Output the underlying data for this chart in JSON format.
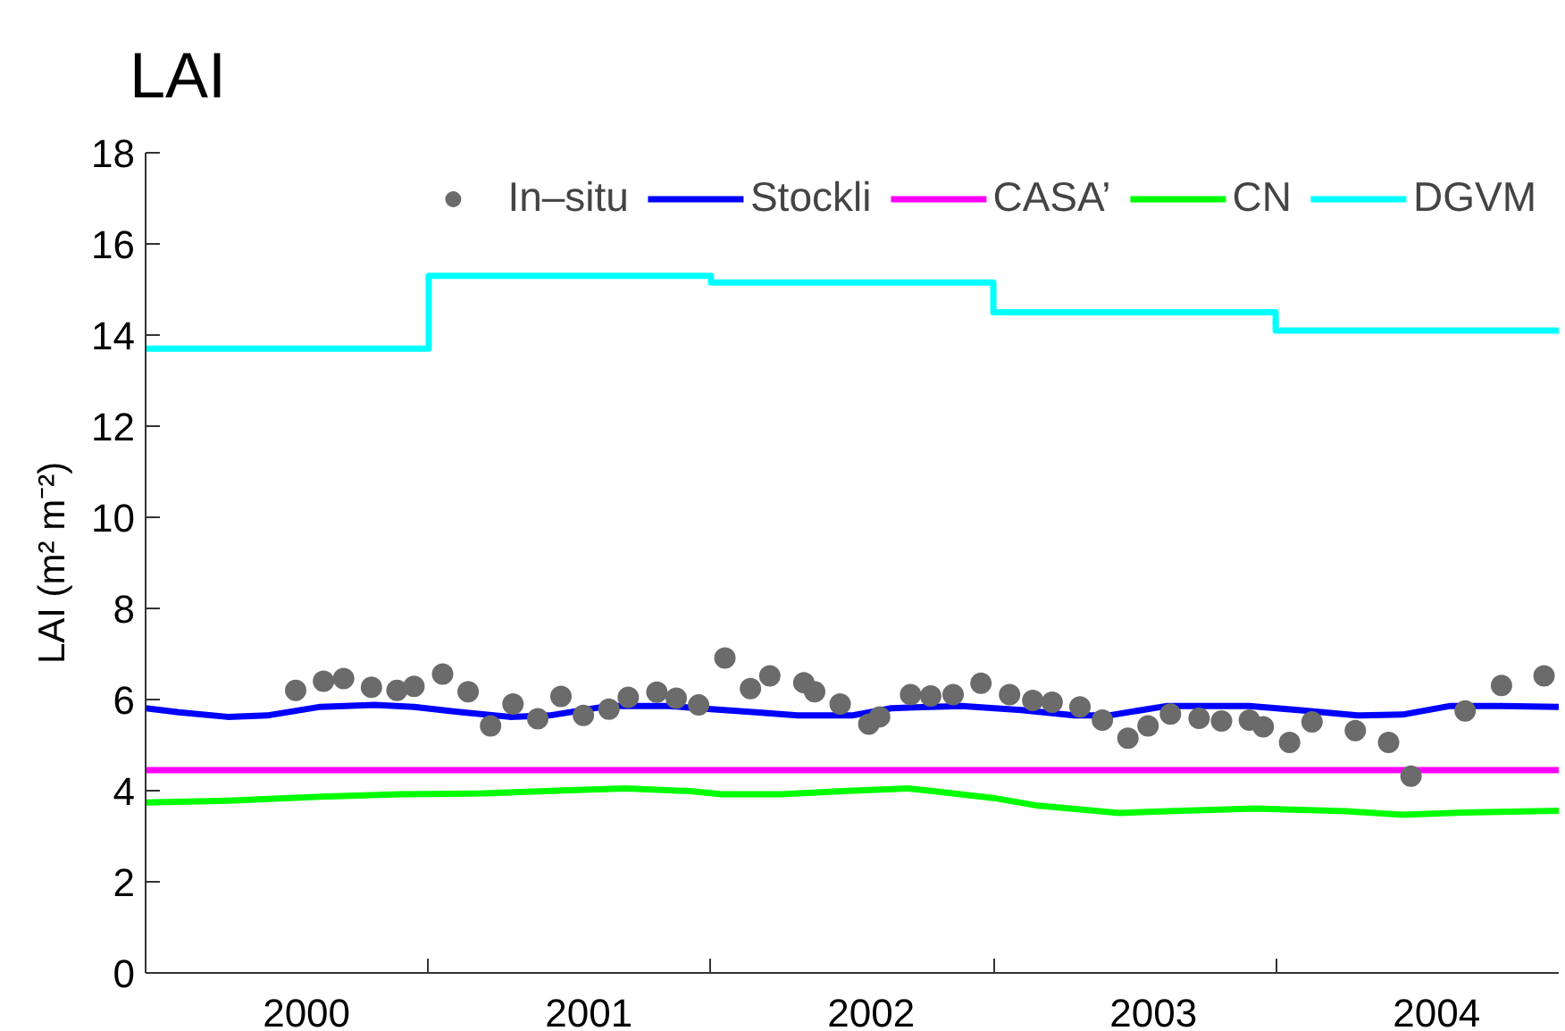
{
  "chart_data": {
    "type": "line",
    "title": "LAI",
    "ylabel": "LAI (m² m⁻²)",
    "xlim": [
      "2000-01-01",
      "2005-01-01"
    ],
    "xticks": [
      {
        "value": "2000-07-27",
        "label": "2000"
      },
      {
        "value": "2001-01-01",
        "label": null
      },
      {
        "value": "2001-07-27",
        "label": "2001"
      },
      {
        "value": "2002-01-01",
        "label": null
      },
      {
        "value": "2002-07-27",
        "label": "2002"
      },
      {
        "value": "2003-01-01",
        "label": null
      },
      {
        "value": "2003-07-27",
        "label": "2003"
      },
      {
        "value": "2004-01-01",
        "label": null
      },
      {
        "value": "2004-07-27",
        "label": "2004"
      }
    ],
    "ylim": [
      0,
      18
    ],
    "yticks": [
      0,
      2,
      4,
      6,
      8,
      10,
      12,
      14,
      16,
      18
    ],
    "legend": "top right",
    "series": [
      {
        "name": "In–situ",
        "type": "scatter",
        "marker": "circle",
        "color": "#6b6b6b",
        "x": [
          "2000-07-13",
          "2000-08-18",
          "2000-09-13",
          "2000-10-19",
          "2000-11-21",
          "2000-12-13",
          "2001-01-19",
          "2001-02-21",
          "2001-03-22",
          "2001-04-20",
          "2001-05-22",
          "2001-06-21",
          "2001-07-20",
          "2001-08-22",
          "2001-09-16",
          "2001-10-23",
          "2001-11-17",
          "2001-12-16",
          "2002-01-19",
          "2002-02-21",
          "2002-03-18",
          "2002-05-01",
          "2002-05-15",
          "2002-06-17",
          "2002-07-24",
          "2002-08-07",
          "2002-09-16",
          "2002-10-12",
          "2002-11-10",
          "2002-12-16",
          "2003-01-22",
          "2003-02-21",
          "2003-03-18",
          "2003-04-23",
          "2003-05-22",
          "2003-06-24",
          "2003-07-20",
          "2003-08-18",
          "2003-09-24",
          "2003-10-23",
          "2003-11-28",
          "2003-12-16",
          "2004-01-19",
          "2004-02-17",
          "2004-04-13",
          "2004-05-26",
          "2004-06-24",
          "2004-09-02",
          "2004-10-19",
          "2004-12-13"
        ],
        "values": [
          6.2,
          6.4,
          6.46,
          6.27,
          6.2,
          6.29,
          6.56,
          6.17,
          5.42,
          5.9,
          5.58,
          6.07,
          5.65,
          5.79,
          6.05,
          6.16,
          6.03,
          5.88,
          6.91,
          6.24,
          6.52,
          6.37,
          6.17,
          5.9,
          5.46,
          5.62,
          6.11,
          6.08,
          6.11,
          6.36,
          6.11,
          5.98,
          5.94,
          5.84,
          5.55,
          5.15,
          5.42,
          5.68,
          5.59,
          5.53,
          5.55,
          5.4,
          5.06,
          5.51,
          5.32,
          5.06,
          4.32,
          5.75,
          6.31,
          6.52
        ]
      },
      {
        "name": "Stockli",
        "color": "#0000ff",
        "x": [
          "2000-01-01",
          "2000-02-13",
          "2000-04-16",
          "2000-06-06",
          "2000-08-14",
          "2000-10-23",
          "2000-12-13",
          "2001-02-13",
          "2001-04-16",
          "2001-06-06",
          "2001-08-22",
          "2001-11-06",
          "2001-12-24",
          "2002-02-28",
          "2002-04-23",
          "2002-07-02",
          "2002-08-22",
          "2002-11-21",
          "2003-02-06",
          "2003-04-16",
          "2003-05-30",
          "2003-08-14",
          "2003-11-28",
          "2004-01-30",
          "2004-04-16",
          "2004-06-13",
          "2004-08-14",
          "2004-10-19",
          "2005-01-01"
        ],
        "values": [
          5.81,
          5.72,
          5.62,
          5.65,
          5.84,
          5.88,
          5.84,
          5.72,
          5.62,
          5.65,
          5.86,
          5.86,
          5.8,
          5.72,
          5.65,
          5.65,
          5.81,
          5.86,
          5.77,
          5.65,
          5.65,
          5.86,
          5.86,
          5.77,
          5.65,
          5.67,
          5.86,
          5.86,
          5.84
        ]
      },
      {
        "name": "CASA’",
        "color": "#ff00ff",
        "x": [
          "2000-01-01",
          "2005-01-01"
        ],
        "values": [
          4.45,
          4.45
        ]
      },
      {
        "name": "CN",
        "color": "#00ff00",
        "x": [
          "2000-01-01",
          "2000-04-16",
          "2000-08-14",
          "2000-11-25",
          "2001-03-14",
          "2001-07-02",
          "2001-09-13",
          "2001-12-05",
          "2002-01-15",
          "2002-04-02",
          "2002-06-21",
          "2002-09-13",
          "2002-10-15",
          "2003-01-01",
          "2003-02-28",
          "2003-06-13",
          "2003-08-14",
          "2003-12-05",
          "2004-04-02",
          "2004-06-13",
          "2004-08-29",
          "2005-01-01"
        ],
        "values": [
          3.74,
          3.78,
          3.87,
          3.92,
          3.94,
          4.01,
          4.05,
          3.99,
          3.92,
          3.92,
          3.99,
          4.05,
          3.99,
          3.84,
          3.67,
          3.51,
          3.55,
          3.61,
          3.55,
          3.47,
          3.52,
          3.56
        ]
      },
      {
        "name": "DGVM",
        "type": "step",
        "color": "#00ffff",
        "x": [
          "2000-01-01",
          "2001-01-01",
          "2002-01-01",
          "2003-01-01",
          "2004-01-01",
          "2005-01-01"
        ],
        "values": [
          13.7,
          15.3,
          15.15,
          14.5,
          14.1,
          14.1
        ]
      }
    ]
  }
}
